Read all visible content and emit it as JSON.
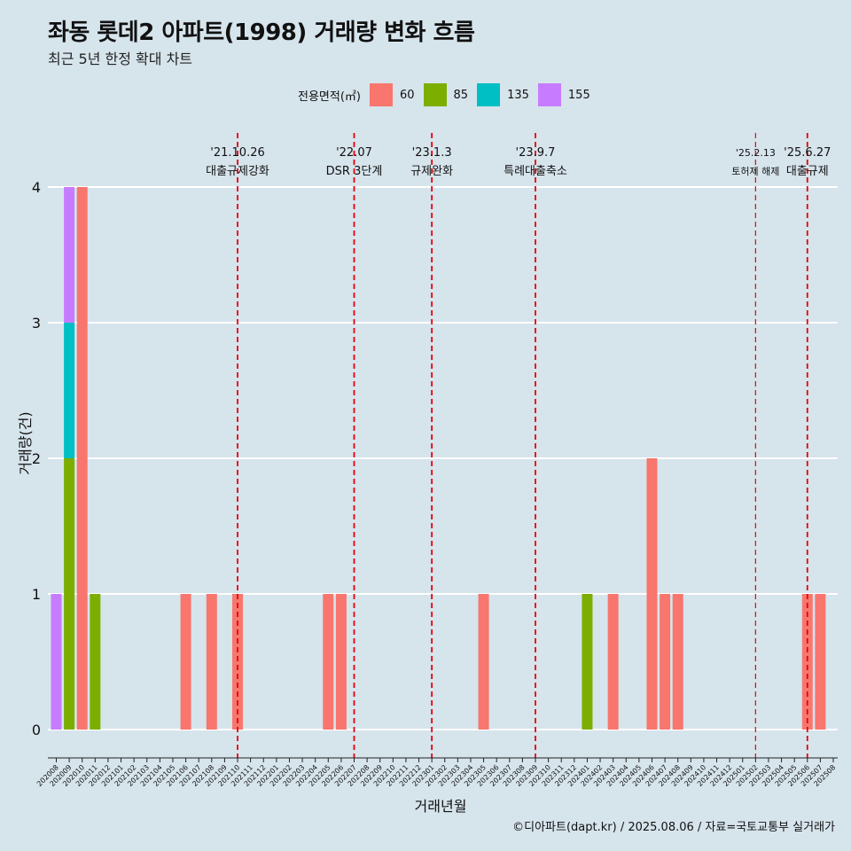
{
  "title": "좌동 롯데2 아파트(1998) 거래량 변화 흐름",
  "subtitle": "최근 5년 한정 확대 차트",
  "caption": "©디아파트(dapt.kr) / 2025.08.06 / 자료=국토교통부 실거래가",
  "legend": {
    "title": "전용면적(㎡)",
    "items": [
      {
        "label": "60",
        "color": "#f8766d"
      },
      {
        "label": "85",
        "color": "#7cae00"
      },
      {
        "label": "135",
        "color": "#00bfc4"
      },
      {
        "label": "155",
        "color": "#c77cff"
      }
    ]
  },
  "chart_data": {
    "type": "bar",
    "xlabel": "거래년월",
    "ylabel": "거래량(건)",
    "ylim": [
      0,
      4
    ],
    "yticks": [
      0,
      1,
      2,
      3,
      4
    ],
    "categories": [
      "202008",
      "202009",
      "202010",
      "202011",
      "202012",
      "202101",
      "202102",
      "202103",
      "202104",
      "202105",
      "202106",
      "202107",
      "202108",
      "202109",
      "202110",
      "202111",
      "202112",
      "202201",
      "202202",
      "202203",
      "202204",
      "202205",
      "202206",
      "202207",
      "202208",
      "202209",
      "202210",
      "202211",
      "202212",
      "202301",
      "202302",
      "202303",
      "202304",
      "202305",
      "202306",
      "202307",
      "202308",
      "202309",
      "202310",
      "202311",
      "202312",
      "202401",
      "202402",
      "202403",
      "202404",
      "202405",
      "202406",
      "202407",
      "202408",
      "202409",
      "202410",
      "202411",
      "202412",
      "202501",
      "202502",
      "202503",
      "202504",
      "202505",
      "202506",
      "202507",
      "202508"
    ],
    "series": [
      {
        "name": "60",
        "color": "#f8766d",
        "points": [
          {
            "x": "202010",
            "y": 4
          },
          {
            "x": "202106",
            "y": 1
          },
          {
            "x": "202108",
            "y": 1
          },
          {
            "x": "202110",
            "y": 1
          },
          {
            "x": "202205",
            "y": 1
          },
          {
            "x": "202206",
            "y": 1
          },
          {
            "x": "202305",
            "y": 1
          },
          {
            "x": "202403",
            "y": 1
          },
          {
            "x": "202406",
            "y": 2
          },
          {
            "x": "202407",
            "y": 1
          },
          {
            "x": "202408",
            "y": 1
          },
          {
            "x": "202506",
            "y": 1
          },
          {
            "x": "202507",
            "y": 1
          }
        ]
      },
      {
        "name": "85",
        "color": "#7cae00",
        "points": [
          {
            "x": "202009",
            "y": 2
          },
          {
            "x": "202011",
            "y": 1
          },
          {
            "x": "202401",
            "y": 1
          }
        ]
      },
      {
        "name": "135",
        "color": "#00bfc4",
        "points": [
          {
            "x": "202009",
            "y": 1
          }
        ]
      },
      {
        "name": "155",
        "color": "#c77cff",
        "points": [
          {
            "x": "202008",
            "y": 1
          },
          {
            "x": "202009",
            "y": 1
          }
        ]
      }
    ],
    "annotations": [
      {
        "x": "202110",
        "date": "'21.10.26",
        "label": "대출규제강화"
      },
      {
        "x": "202207",
        "date": "'22.07",
        "label": "DSR 3단계"
      },
      {
        "x": "202301",
        "date": "'23.1.3",
        "label": "규제완화"
      },
      {
        "x": "202309",
        "date": "'23.9.7",
        "label": "특례대출축소"
      },
      {
        "x": "202502",
        "date": "'25.2.13",
        "label": "토허제 해제"
      },
      {
        "x": "202506",
        "date": "'25.6.27",
        "label": "대출규제"
      }
    ]
  }
}
